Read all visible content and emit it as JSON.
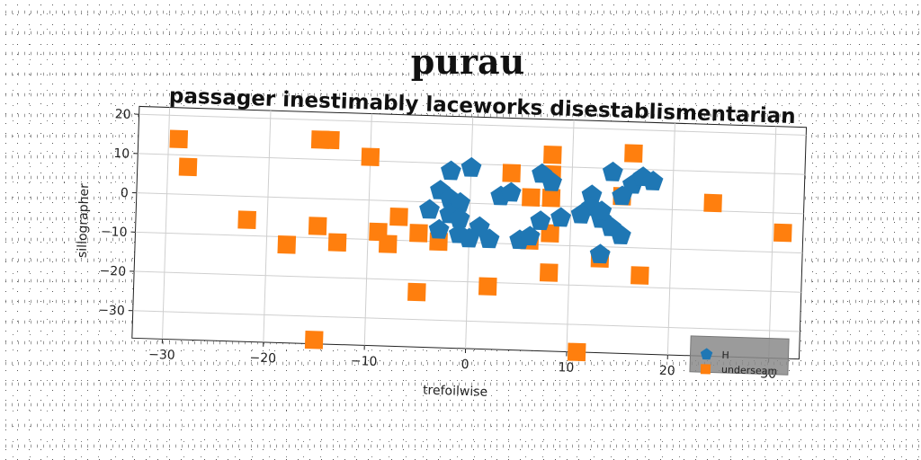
{
  "chart_data": {
    "type": "scatter",
    "title": "purau",
    "subtitle": "passager inestimably laceworks disestablismentarian",
    "xlabel": "trefoilwise",
    "ylabel": "sillographer",
    "xlim": [
      -33,
      33
    ],
    "ylim": [
      -37,
      22
    ],
    "xticks": [
      -30,
      -20,
      -10,
      0,
      10,
      20,
      30
    ],
    "yticks": [
      -30,
      -20,
      -10,
      0,
      10,
      20
    ],
    "xtick_labels": [
      "−30",
      "−20",
      "−10",
      "0",
      "10",
      "20",
      "30"
    ],
    "ytick_labels": [
      "−30",
      "−20",
      "−10",
      "0",
      "10",
      "20"
    ],
    "grid": true,
    "legend_position": "bottom-right",
    "series": [
      {
        "name": "H",
        "marker": "pentagon",
        "color": "#1f77b4",
        "points": [
          [
            -2,
            8
          ],
          [
            0,
            9
          ],
          [
            -3,
            3
          ],
          [
            -2,
            1
          ],
          [
            -1,
            0
          ],
          [
            -4,
            -2
          ],
          [
            -2,
            -3
          ],
          [
            -1,
            -4
          ],
          [
            -3,
            -7
          ],
          [
            -1,
            -8
          ],
          [
            0,
            -9
          ],
          [
            1,
            -6
          ],
          [
            2,
            -9
          ],
          [
            3,
            2
          ],
          [
            4,
            3
          ],
          [
            5,
            -9
          ],
          [
            6,
            -8
          ],
          [
            7,
            8
          ],
          [
            8,
            6
          ],
          [
            7,
            -4
          ],
          [
            9,
            -3
          ],
          [
            12,
            3
          ],
          [
            12,
            0
          ],
          [
            13,
            -3
          ],
          [
            14,
            -5
          ],
          [
            15,
            -7
          ],
          [
            14,
            9
          ],
          [
            16,
            6
          ],
          [
            17,
            8
          ],
          [
            18,
            7
          ],
          [
            15,
            3
          ],
          [
            13,
            -12
          ],
          [
            11,
            -2
          ],
          [
            13,
            -1
          ]
        ]
      },
      {
        "name": "underseam",
        "marker": "square",
        "color": "#ff7f0e",
        "points": [
          [
            -29,
            14
          ],
          [
            -28,
            7
          ],
          [
            -15,
            15
          ],
          [
            -14,
            15
          ],
          [
            -10,
            11
          ],
          [
            -22,
            -6
          ],
          [
            -18,
            -12
          ],
          [
            -15,
            -7
          ],
          [
            -13,
            -11
          ],
          [
            -9,
            -8
          ],
          [
            -8,
            -11
          ],
          [
            -7,
            -4
          ],
          [
            -5,
            -8
          ],
          [
            -3,
            -10
          ],
          [
            -5,
            -23
          ],
          [
            2,
            -21
          ],
          [
            4,
            8
          ],
          [
            6,
            2
          ],
          [
            6,
            -9
          ],
          [
            8,
            13
          ],
          [
            8,
            8
          ],
          [
            8,
            2
          ],
          [
            8,
            -7
          ],
          [
            8,
            -17
          ],
          [
            11,
            -37
          ],
          [
            13,
            -13
          ],
          [
            15,
            3
          ],
          [
            16,
            14
          ],
          [
            17,
            -17
          ],
          [
            24,
            2
          ],
          [
            31,
            -5
          ],
          [
            -15,
            -36
          ]
        ]
      }
    ]
  }
}
